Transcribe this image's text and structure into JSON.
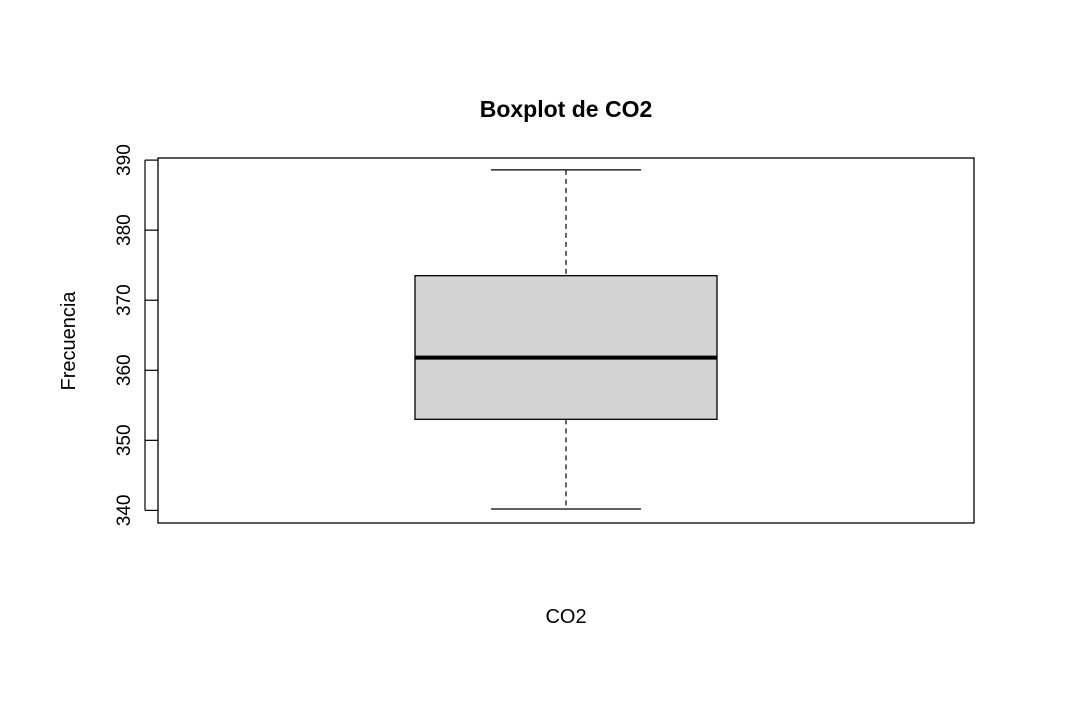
{
  "chart_data": {
    "type": "box",
    "title": "Boxplot de CO2",
    "xlabel": "CO2",
    "ylabel": "Frecuencia",
    "ylim": [
      338.2,
      390.3
    ],
    "yticks": [
      340,
      350,
      360,
      370,
      380,
      390
    ],
    "grid": false,
    "legend": "none",
    "series": [
      {
        "stats": {
          "min": 340.2,
          "q1": 353.0,
          "median": 361.8,
          "q3": 373.5,
          "max": 388.6
        }
      }
    ],
    "colors": {
      "box_fill": "#d3d3d3",
      "stroke": "#000000"
    }
  }
}
